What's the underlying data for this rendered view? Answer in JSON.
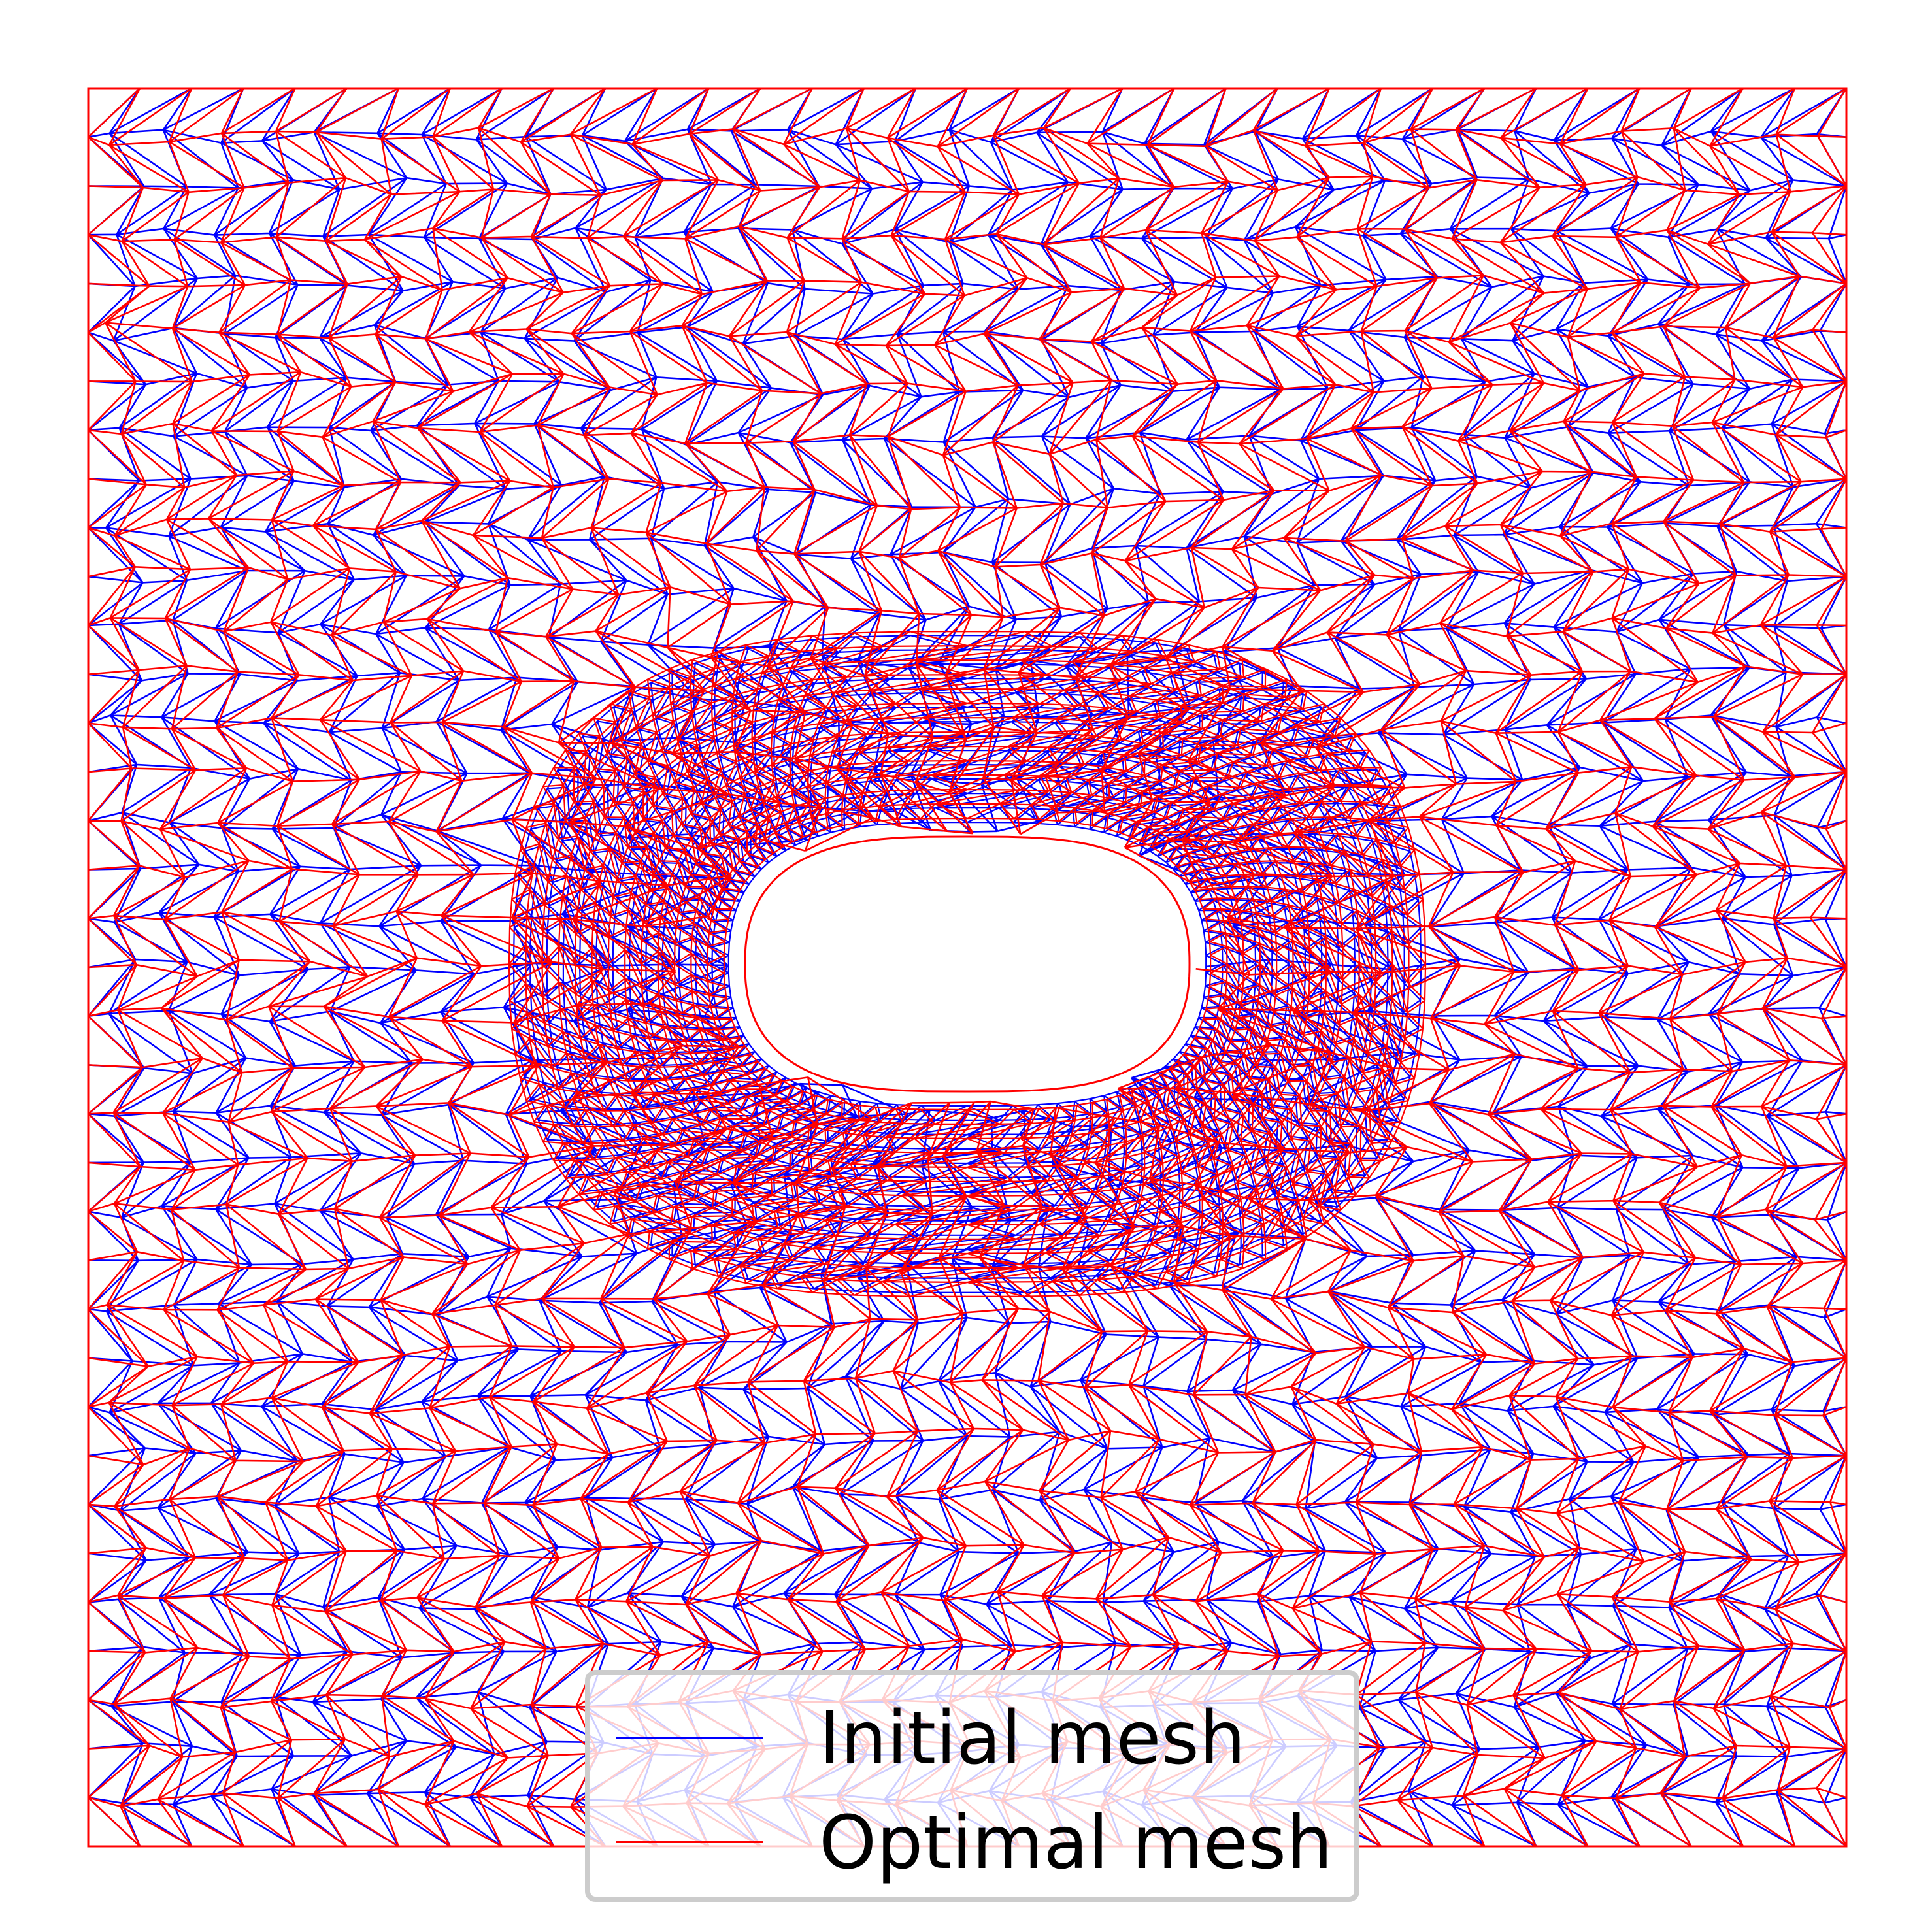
{
  "figure": {
    "colors": {
      "initial_mesh": "#0000ff",
      "optimal_mesh": "#ff0000",
      "background": "#ffffff"
    }
  },
  "legend": {
    "placement": "lower center",
    "items": [
      {
        "label": "Initial mesh",
        "color": "#0000ff"
      },
      {
        "label": "Optimal mesh",
        "color": "#ff0000"
      }
    ]
  }
}
